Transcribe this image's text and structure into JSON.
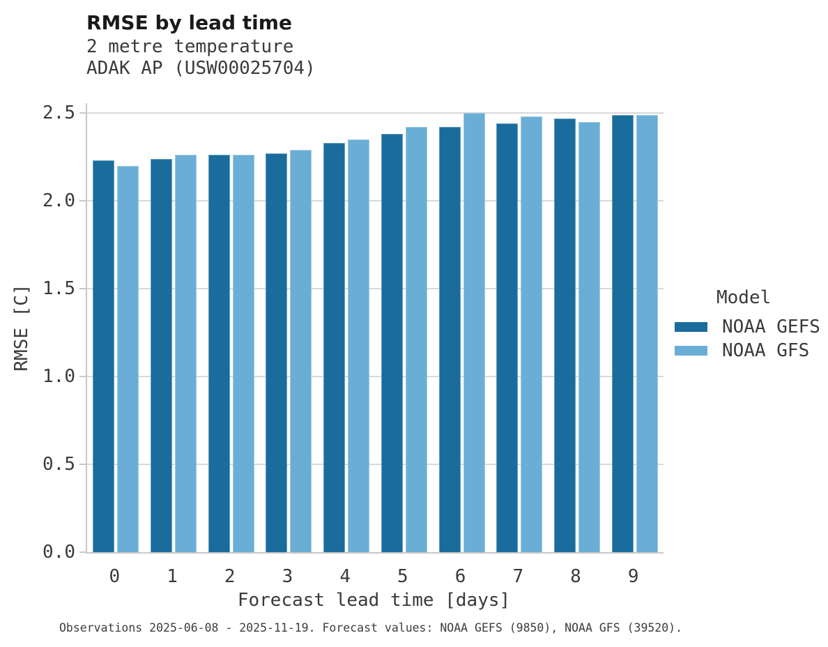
{
  "header": {
    "title": "RMSE by lead time",
    "subtitle1": "2 metre temperature",
    "subtitle2": "ADAK AP (USW00025704)"
  },
  "chart_data": {
    "type": "bar",
    "title": "RMSE by lead time",
    "subtitle": [
      "2 metre temperature",
      "ADAK AP (USW00025704)"
    ],
    "categories": [
      "0",
      "1",
      "2",
      "3",
      "4",
      "5",
      "6",
      "7",
      "8",
      "9"
    ],
    "series": [
      {
        "name": "NOAA GEFS",
        "color": "#1a6c9c",
        "values": [
          2.23,
          2.24,
          2.26,
          2.27,
          2.33,
          2.38,
          2.42,
          2.44,
          2.47,
          2.49
        ]
      },
      {
        "name": "NOAA GFS",
        "color": "#6aaed6",
        "values": [
          2.2,
          2.26,
          2.26,
          2.29,
          2.35,
          2.42,
          2.5,
          2.48,
          2.45,
          2.49
        ]
      }
    ],
    "xlabel": "Forecast lead time [days]",
    "ylabel": "RMSE [C]",
    "ylim": [
      0,
      2.5
    ],
    "yticks": [
      0.0,
      0.5,
      1.0,
      1.5,
      2.0,
      2.5
    ],
    "ytick_labels": [
      "0.0",
      "0.5",
      "1.0",
      "1.5",
      "2.0",
      "2.5"
    ],
    "grid": true,
    "legend_title": "Model",
    "legend_position": "right"
  },
  "legend": {
    "title": "Model",
    "entries": [
      {
        "label": "NOAA GEFS",
        "color": "#1a6c9c"
      },
      {
        "label": "NOAA GFS",
        "color": "#6aaed6"
      }
    ]
  },
  "footer": {
    "text": "Observations 2025-06-08 - 2025-11-19. Forecast values: NOAA GEFS (9850), NOAA GFS (39520)."
  },
  "colors": {
    "gefs_bar": "#1a6c9c",
    "gfs_bar": "#6aaed6",
    "gridline": "#d8d8d8",
    "axis_spine": "#c8c8c8",
    "title_text": "#1a1a1a",
    "body_text": "#3a3a3a"
  }
}
